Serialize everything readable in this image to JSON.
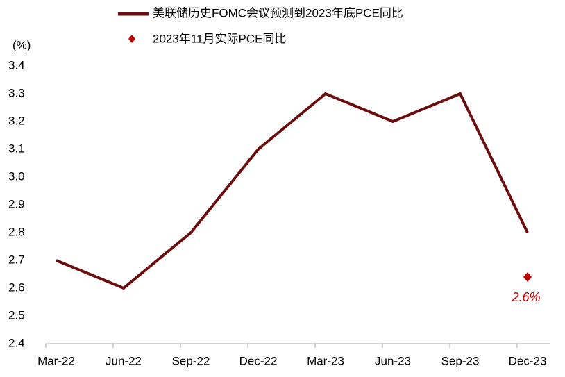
{
  "chart_data": {
    "type": "line",
    "y_unit_label": "(%)",
    "categories": [
      "Mar-22",
      "Jun-22",
      "Sep-22",
      "Dec-22",
      "Mar-23",
      "Jun-23",
      "Sep-23",
      "Dec-23"
    ],
    "series": [
      {
        "name": "美联储历史FOMC会议预测到2023年底PCE同比",
        "color": "#6b0d0d",
        "type": "line",
        "values": [
          2.7,
          2.6,
          2.8,
          3.1,
          3.3,
          3.2,
          3.3,
          2.8
        ]
      },
      {
        "name": "2023年11月实际PCE同比",
        "color": "#c00000",
        "type": "scatter",
        "values": [
          null,
          null,
          null,
          null,
          null,
          null,
          null,
          2.64
        ],
        "value_labels": [
          null,
          null,
          null,
          null,
          null,
          null,
          null,
          "2.6%"
        ]
      }
    ],
    "ylim": [
      2.4,
      3.4
    ],
    "yticks": [
      2.4,
      2.5,
      2.6,
      2.7,
      2.8,
      2.9,
      {
        "value": 3.0,
        "label": "3.0"
      },
      3.1,
      3.2,
      3.3,
      3.4
    ]
  }
}
